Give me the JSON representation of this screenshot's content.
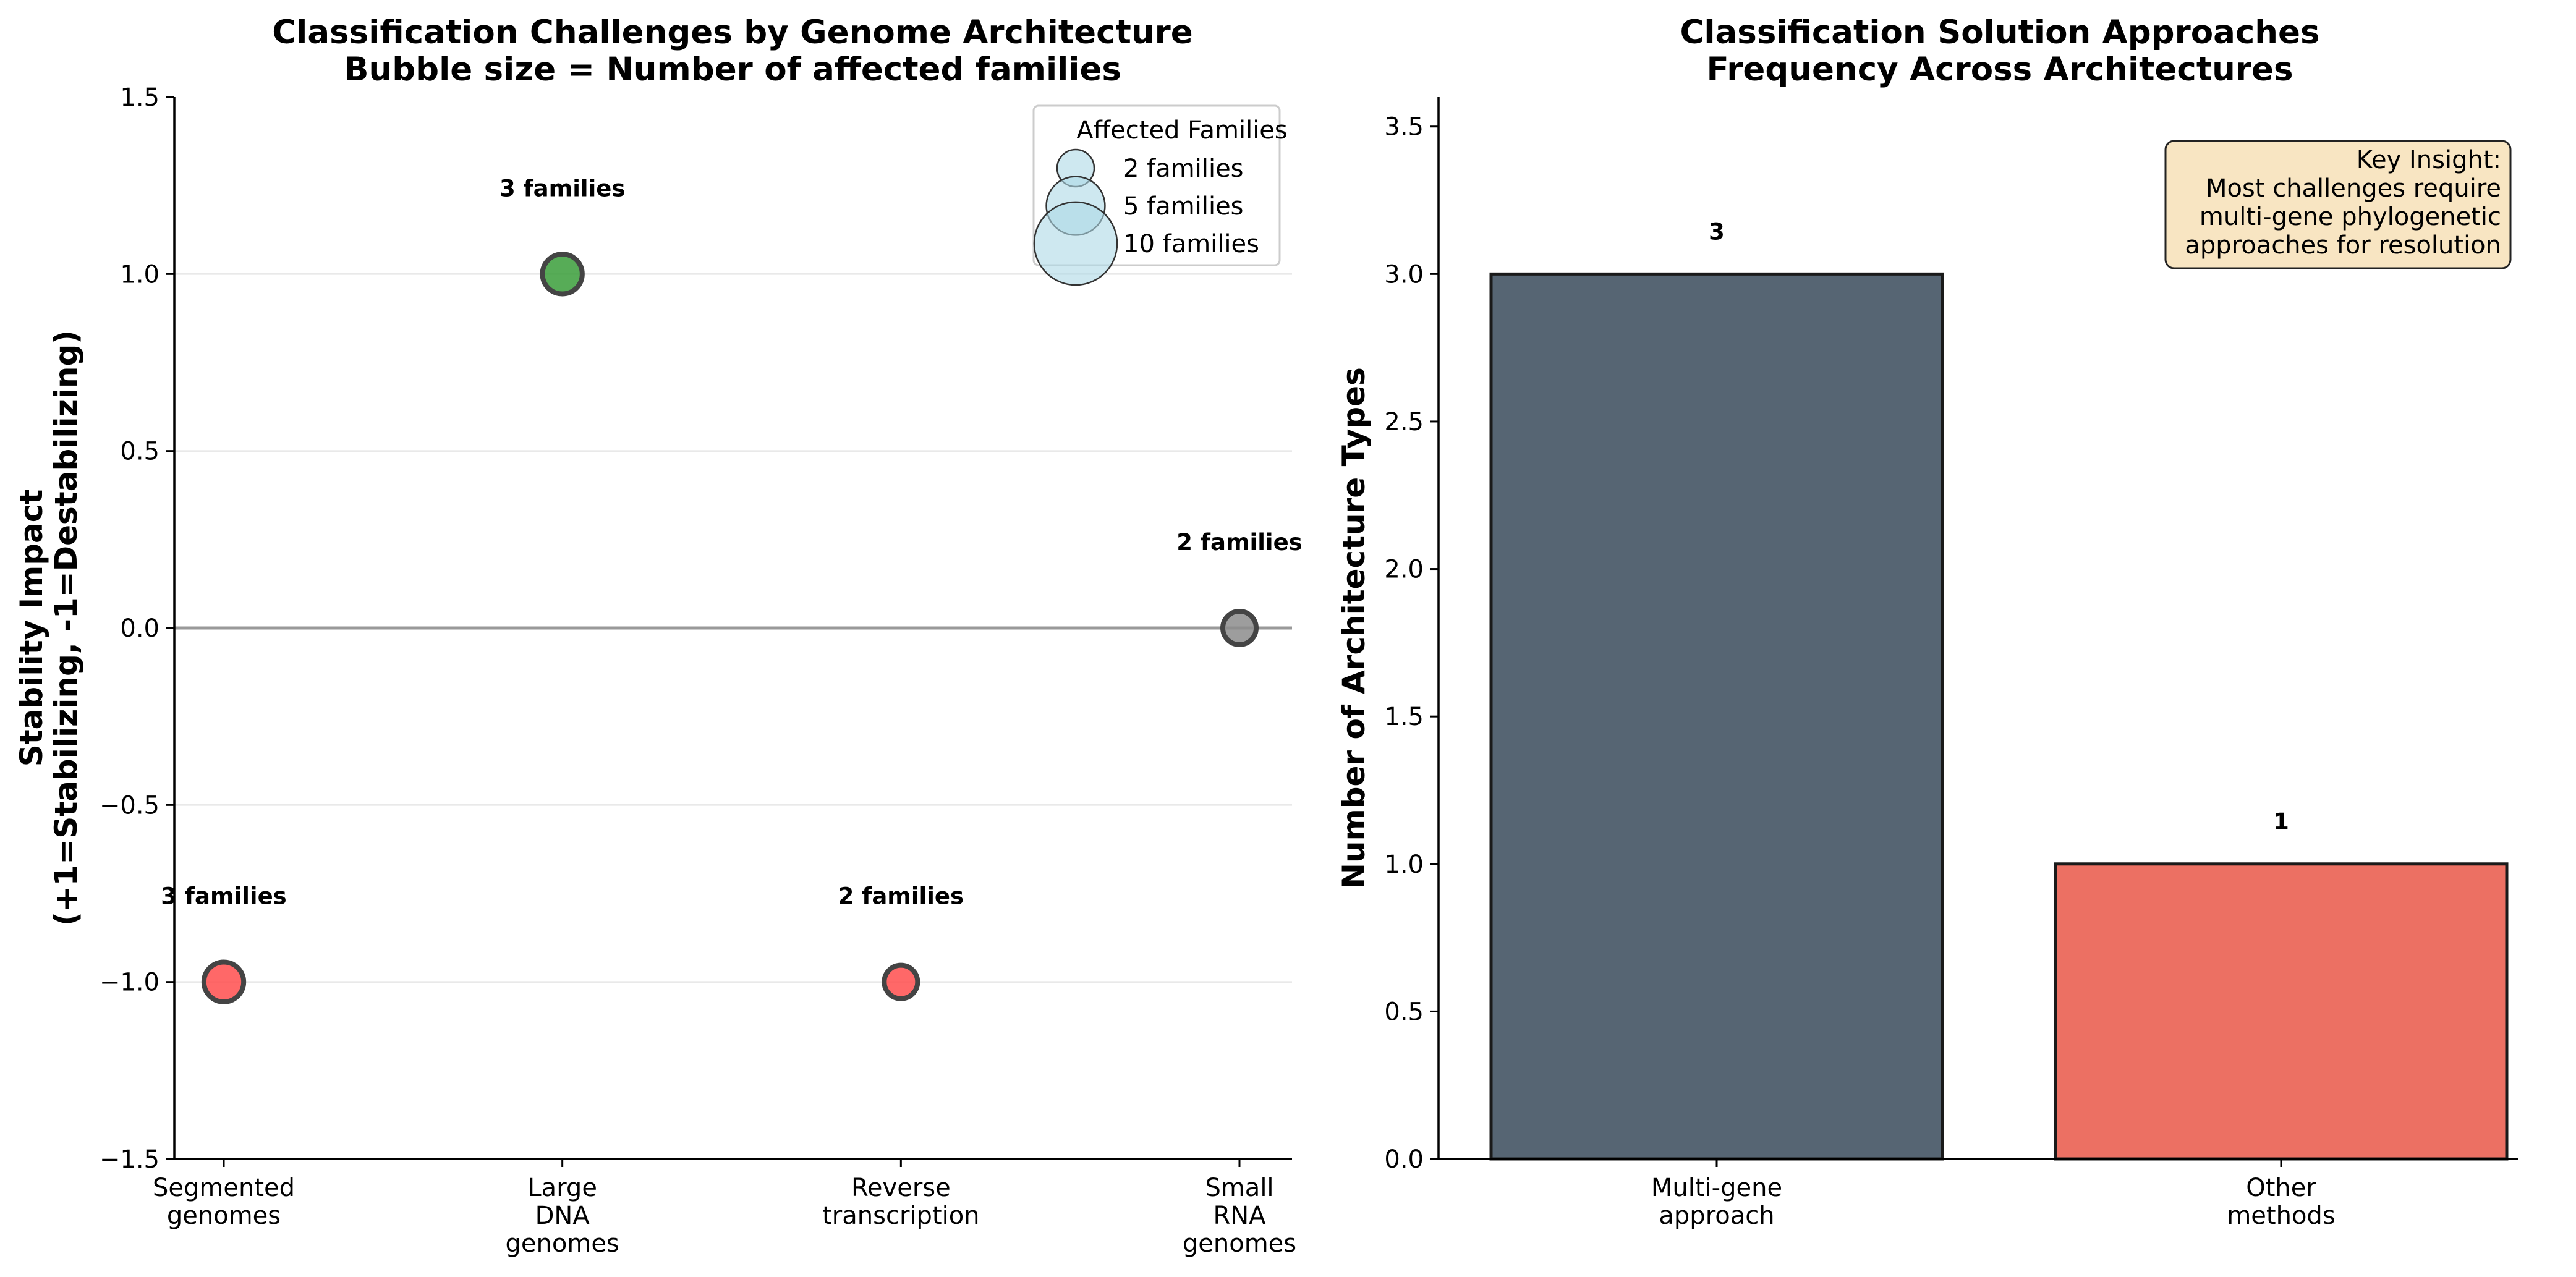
{
  "chart_data": [
    {
      "type": "scatter",
      "title": "Classification Challenges by Genome Architecture",
      "subtitle": "Bubble size = Number of affected families",
      "xlabel": "",
      "ylabel": "Stability Impact",
      "ylabel_line2": "(+1=Stabilizing, -1=Destabilizing)",
      "ylim": [
        -1.5,
        1.5
      ],
      "yticks": [
        {
          "value": -1.5,
          "label": "−1.5"
        },
        {
          "value": -1.0,
          "label": "−1.0"
        },
        {
          "value": -0.5,
          "label": "−0.5"
        },
        {
          "value": 0.0,
          "label": "0.0"
        },
        {
          "value": 0.5,
          "label": "0.5"
        },
        {
          "value": 1.0,
          "label": "1.0"
        },
        {
          "value": 1.5,
          "label": "1.5"
        }
      ],
      "grid": "horizontal",
      "reference_line_y": 0,
      "categories": [
        {
          "lines": [
            "Segmented",
            "genomes"
          ]
        },
        {
          "lines": [
            "Large",
            "DNA",
            "genomes"
          ]
        },
        {
          "lines": [
            "Reverse",
            "transcription"
          ]
        },
        {
          "lines": [
            "Small",
            "RNA",
            "genomes"
          ]
        }
      ],
      "points": [
        {
          "category_index": 0,
          "y": -1,
          "families": 3,
          "label": "3 families",
          "color": "#ff4d4d"
        },
        {
          "category_index": 1,
          "y": 1,
          "families": 3,
          "label": "3 families",
          "color": "#3a9d3a"
        },
        {
          "category_index": 2,
          "y": -1,
          "families": 2,
          "label": "2 families",
          "color": "#ff4d4d"
        },
        {
          "category_index": 3,
          "y": 0,
          "families": 2,
          "label": "2 families",
          "color": "#8c8c8c"
        }
      ],
      "legend": {
        "title": "Affected Families",
        "placement": "top-right",
        "entries": [
          {
            "families": 2,
            "label": "2 families"
          },
          {
            "families": 5,
            "label": "5 families"
          },
          {
            "families": 10,
            "label": "10 families"
          }
        ],
        "color": "#add8e6"
      }
    },
    {
      "type": "bar",
      "title": "Classification Solution Approaches",
      "subtitle": "Frequency Across Architectures",
      "xlabel": "",
      "ylabel": "Number of Architecture Types",
      "ylim": [
        0,
        3.6
      ],
      "yticks": [
        {
          "value": 0.0,
          "label": "0.0"
        },
        {
          "value": 0.5,
          "label": "0.5"
        },
        {
          "value": 1.0,
          "label": "1.0"
        },
        {
          "value": 1.5,
          "label": "1.5"
        },
        {
          "value": 2.0,
          "label": "2.0"
        },
        {
          "value": 2.5,
          "label": "2.5"
        },
        {
          "value": 3.0,
          "label": "3.0"
        },
        {
          "value": 3.5,
          "label": "3.5"
        }
      ],
      "categories": [
        {
          "lines": [
            "Multi-gene",
            "approach"
          ]
        },
        {
          "lines": [
            "Other",
            "methods"
          ]
        }
      ],
      "values": [
        3,
        1
      ],
      "value_labels": [
        "3",
        "1"
      ],
      "colors": [
        "#566573",
        "#ec7063"
      ],
      "annotation": {
        "placement": "top-right",
        "lines": [
          "Key Insight:",
          "Most challenges require",
          "multi-gene phylogenetic",
          "approaches for resolution"
        ],
        "background": "#f8e5c2"
      }
    }
  ]
}
